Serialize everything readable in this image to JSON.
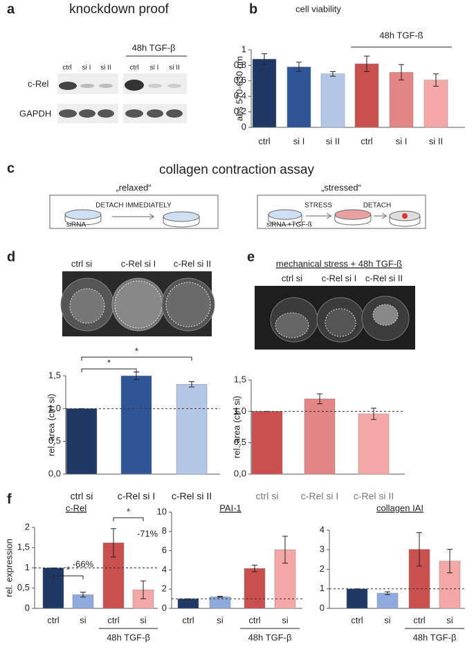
{
  "panels": {
    "a": {
      "letter": "a",
      "title": "knockdown proof",
      "treatment": "48h TGF-β",
      "lanes": [
        "ctrl",
        "si I",
        "si II",
        "ctrl",
        "si I",
        "si II"
      ],
      "rows": [
        "c-Rel",
        "GAPDH"
      ]
    },
    "b": {
      "letter": "b"
    },
    "c": {
      "letter": "c",
      "title": "collagen contraction assay",
      "relaxed": {
        "label": "„relaxed“",
        "step": "DETACH IMMEDIATELY",
        "sample": "siRNA"
      },
      "stressed": {
        "label": "„stressed“",
        "step1": "STRESS",
        "step2": "DETACH",
        "sample": "siRNA +TGF-ß"
      }
    },
    "d": {
      "letter": "d",
      "wells": [
        "ctrl si",
        "c-Rel si I",
        "c-Rel si II"
      ]
    },
    "e": {
      "letter": "e",
      "title": "mechanical stress + 48h TGF-ß",
      "wells": [
        "ctrl si",
        "c-Rel si I",
        "c-Rel si II"
      ]
    },
    "f": {
      "letter": "f"
    }
  },
  "chart_data": [
    {
      "type": "bar",
      "title": "cell viability",
      "y_label": "abs 570-630 nm",
      "categories": [
        "ctrl",
        "si I",
        "si II",
        "ctrl",
        "si I",
        "si II"
      ],
      "values": [
        0.88,
        0.78,
        0.69,
        0.82,
        0.71,
        0.61
      ],
      "errors": [
        0.07,
        0.06,
        0.03,
        0.1,
        0.1,
        0.08
      ],
      "colors": [
        "#1f3864",
        "#2f5597",
        "#b4c7e7",
        "#c9504f",
        "#e38585",
        "#f4a7a7"
      ],
      "ylim": [
        0,
        1
      ],
      "yticks": [
        0,
        {
          "value": 0.2,
          "label": "0,2"
        },
        {
          "value": 0.4,
          "label": "0,4"
        },
        {
          "value": 0.6,
          "label": "0,6"
        },
        {
          "value": 0.8,
          "label": "0,8"
        },
        1
      ],
      "group_label": "48h TGF-ß",
      "group": [
        3,
        5
      ]
    },
    {
      "type": "bar",
      "y_label": "rel. area (ctrl si)",
      "categories": [
        "ctrl si",
        "c-Rel si I",
        "c-Rel si II"
      ],
      "values": [
        1.0,
        1.5,
        1.37
      ],
      "errors": [
        0,
        0.06,
        0.04
      ],
      "colors": [
        "#1f3864",
        "#2f5597",
        "#b4c7e7"
      ],
      "ylim": [
        0,
        1.5
      ],
      "yticks": [
        {
          "value": 0,
          "label": "0,0"
        },
        {
          "value": 0.5,
          "label": "0,5"
        },
        {
          "value": 1,
          "label": "1,0"
        },
        {
          "value": 1.5,
          "label": "1,5"
        }
      ],
      "reference_line": 1,
      "significance": [
        {
          "from": 0,
          "to": 1,
          "label": "*"
        },
        {
          "from": 0,
          "to": 2,
          "label": "*"
        }
      ]
    },
    {
      "type": "bar",
      "y_label": "rel. area (ctrl si)",
      "categories": [
        "ctrl si",
        "c-Rel si I",
        "c-Rel si II"
      ],
      "values": [
        1.0,
        1.2,
        0.96
      ],
      "errors": [
        0,
        0.08,
        0.09
      ],
      "colors": [
        "#c9504f",
        "#e38585",
        "#f4a7a7"
      ],
      "ylim": [
        0,
        1.5
      ],
      "yticks": [
        {
          "value": 0,
          "label": "0,0"
        },
        {
          "value": 0.5,
          "label": "0,5"
        },
        {
          "value": 1,
          "label": "1,0"
        },
        {
          "value": 1.5,
          "label": "1,5"
        }
      ],
      "reference_line": 1
    },
    {
      "type": "bar",
      "title": "c-Rel",
      "y_label": "rel. expression",
      "categories": [
        "ctrl",
        "si",
        "ctrl",
        "si"
      ],
      "values": [
        1.0,
        0.34,
        1.62,
        0.46
      ],
      "errors": [
        0,
        0.06,
        0.35,
        0.22
      ],
      "colors": [
        "#1f3864",
        "#8faadc",
        "#c9504f",
        "#f4a7a7"
      ],
      "ylim": [
        0,
        2
      ],
      "yticks": [
        0,
        {
          "value": 0.5,
          "label": "0,5"
        },
        1,
        {
          "value": 1.5,
          "label": "1,5"
        },
        2
      ],
      "reference_line": 1,
      "significance": [
        {
          "from": 0,
          "to": 1,
          "label": "*"
        },
        {
          "from": 2,
          "to": 3,
          "label": "*"
        }
      ],
      "annotations": [
        {
          "bar": 1,
          "label": "-66%"
        },
        {
          "bar": 3,
          "label": "-71%"
        }
      ],
      "group_label": "48h TGF-β",
      "group": [
        2,
        3
      ]
    },
    {
      "type": "bar",
      "title": "PAI-1",
      "categories": [
        "ctrl",
        "si",
        "ctrl",
        "si"
      ],
      "values": [
        1.0,
        1.2,
        4.15,
        6.1
      ],
      "errors": [
        0,
        0.05,
        0.35,
        1.4
      ],
      "colors": [
        "#1f3864",
        "#8faadc",
        "#c9504f",
        "#f4a7a7"
      ],
      "ylim": [
        0,
        10
      ],
      "yticks": [
        0,
        2,
        4,
        6,
        8,
        10
      ],
      "reference_line": 1,
      "group_label": "48h TGF-β",
      "group": [
        2,
        3
      ]
    },
    {
      "type": "bar",
      "title": "collagen IAI",
      "categories": [
        "ctrl",
        "si",
        "ctrl",
        "si"
      ],
      "values": [
        1.0,
        0.78,
        3.02,
        2.42
      ],
      "errors": [
        0,
        0.07,
        0.85,
        0.6
      ],
      "colors": [
        "#1f3864",
        "#8faadc",
        "#c9504f",
        "#f4a7a7"
      ],
      "ylim": [
        0,
        4
      ],
      "yticks": [
        0,
        1,
        2,
        3,
        4
      ],
      "reference_line": 1,
      "group_label": "48h TGF-β",
      "group": [
        2,
        3
      ]
    }
  ]
}
